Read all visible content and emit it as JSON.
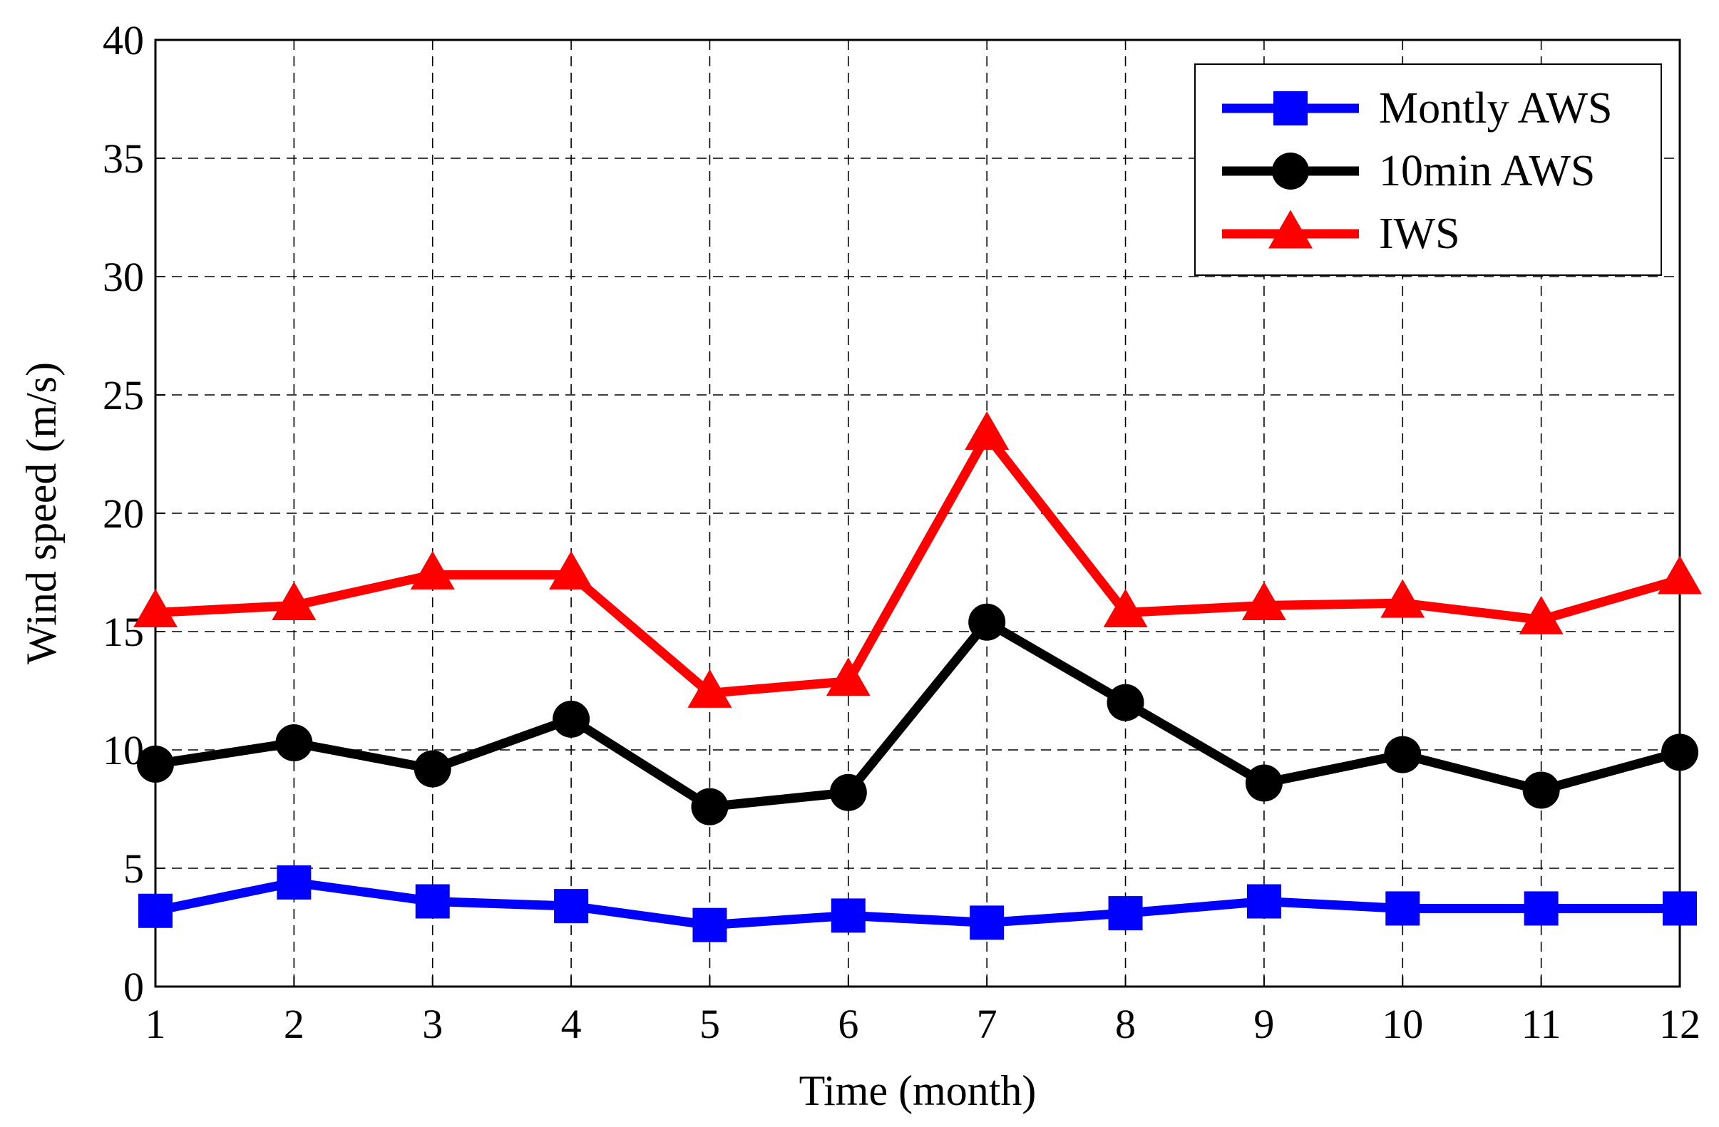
{
  "chart_data": {
    "type": "line",
    "title": "",
    "xlabel": "Time (month)",
    "ylabel": "Wind speed (m/s)",
    "x": [
      1,
      2,
      3,
      4,
      5,
      6,
      7,
      8,
      9,
      10,
      11,
      12
    ],
    "xlim": [
      1,
      12
    ],
    "ylim": [
      0,
      40
    ],
    "xticks": [
      "1",
      "2",
      "3",
      "4",
      "5",
      "6",
      "7",
      "8",
      "9",
      "10",
      "11",
      "12"
    ],
    "yticks": [
      "0",
      "5",
      "10",
      "15",
      "20",
      "25",
      "30",
      "35",
      "40"
    ],
    "grid": true,
    "legend_position": "top-right",
    "series": [
      {
        "name": "Montly AWS",
        "color": "#0000ff",
        "marker": "square",
        "values": [
          3.2,
          4.4,
          3.6,
          3.4,
          2.6,
          3.0,
          2.7,
          3.1,
          3.6,
          3.3,
          3.3,
          3.3
        ]
      },
      {
        "name": "10min AWS",
        "color": "#000000",
        "marker": "circle",
        "values": [
          9.4,
          10.3,
          9.2,
          11.3,
          7.6,
          8.2,
          15.4,
          12.0,
          8.6,
          9.8,
          8.3,
          9.9
        ]
      },
      {
        "name": "IWS",
        "color": "#ff0000",
        "marker": "triangle",
        "values": [
          15.8,
          16.1,
          17.4,
          17.4,
          12.4,
          12.9,
          23.3,
          15.8,
          16.1,
          16.2,
          15.5,
          17.2
        ]
      }
    ]
  }
}
